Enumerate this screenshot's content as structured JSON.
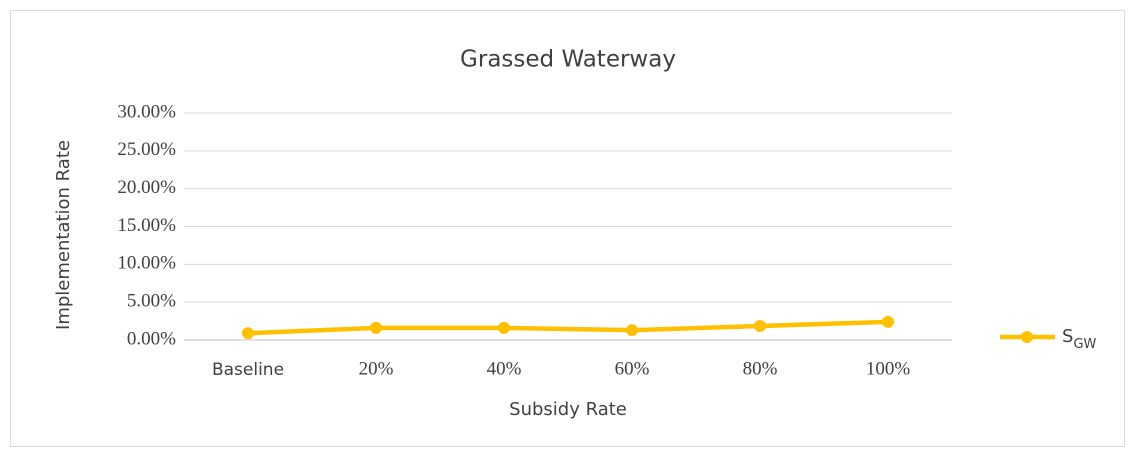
{
  "chart_data": {
    "type": "line",
    "title": "Grassed Waterway",
    "x_label": "Subsidy Rate",
    "y_label": "Implementation Rate",
    "categories": [
      "Baseline",
      "20%",
      "40%",
      "60%",
      "80%",
      "100%"
    ],
    "series": [
      {
        "name": {
          "text": "S",
          "subscript": "GW"
        },
        "color": "#ffc000",
        "values": [
          0.9,
          1.6,
          1.6,
          1.3,
          1.85,
          2.4
        ]
      }
    ],
    "ylim": [
      0,
      30
    ],
    "yticks": [
      {
        "value": 0,
        "label": "0.00%"
      },
      {
        "value": 5,
        "label": "5.00%"
      },
      {
        "value": 10,
        "label": "10.00%"
      },
      {
        "value": 15,
        "label": "15.00%"
      },
      {
        "value": 20,
        "label": "20.00%"
      },
      {
        "value": 25,
        "label": "25.00%"
      },
      {
        "value": 30,
        "label": "30.00%"
      }
    ],
    "grid": true,
    "legend": "right"
  }
}
